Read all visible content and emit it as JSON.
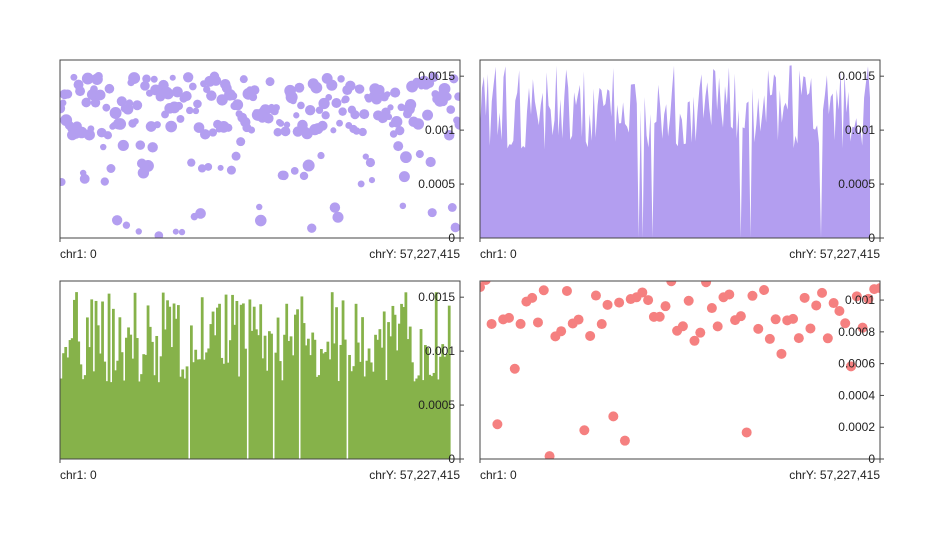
{
  "panels": [
    {
      "id": "scatter-purple",
      "type": "scatter",
      "color": "#b39ef0",
      "x_start_label": "chr1: 0",
      "x_end_label": "chrY: 57,227,415",
      "ylim": [
        0,
        0.00165
      ],
      "yticks": [
        {
          "value": 0,
          "label": "0"
        },
        {
          "value": 0.0005,
          "label": "0.0005"
        },
        {
          "value": 0.001,
          "label": "0.001"
        },
        {
          "value": 0.0015,
          "label": "0.0015"
        }
      ],
      "point_count": 260,
      "size_range": [
        3,
        6
      ]
    },
    {
      "id": "area-purple",
      "type": "area",
      "color": "#b39ef0",
      "x_start_label": "chr1: 0",
      "x_end_label": "chrY: 57,227,415",
      "ylim": [
        0,
        0.00165
      ],
      "yticks": [
        {
          "value": 0,
          "label": "0"
        },
        {
          "value": 0.0005,
          "label": "0.0005"
        },
        {
          "value": 0.001,
          "label": "0.001"
        },
        {
          "value": 0.0015,
          "label": "0.0015"
        }
      ],
      "point_count": 200
    },
    {
      "id": "bar-green",
      "type": "bar",
      "color": "#86b24a",
      "x_start_label": "chr1: 0",
      "x_end_label": "chrY: 57,227,415",
      "ylim": [
        0,
        0.00165
      ],
      "yticks": [
        {
          "value": 0,
          "label": "0"
        },
        {
          "value": 0.0005,
          "label": "0.0005"
        },
        {
          "value": 0.001,
          "label": "0.001"
        },
        {
          "value": 0.0015,
          "label": "0.0015"
        }
      ],
      "point_count": 180
    },
    {
      "id": "scatter-red",
      "type": "scatter",
      "color": "#f58080",
      "x_start_label": "chr1: 0",
      "x_end_label": "chrY: 57,227,415",
      "ylim": [
        0,
        0.00112
      ],
      "yticks": [
        {
          "value": 0,
          "label": "0"
        },
        {
          "value": 0.0002,
          "label": "0.0002"
        },
        {
          "value": 0.0004,
          "label": "0.0004"
        },
        {
          "value": 0.0006,
          "label": "0.0006"
        },
        {
          "value": 0.0008,
          "label": "0.0008"
        },
        {
          "value": 0.001,
          "label": "0.001"
        }
      ],
      "point_count": 70,
      "size_range": [
        5,
        5
      ]
    }
  ],
  "chart_data": [
    {
      "type": "scatter",
      "title": "",
      "xlabel": "",
      "ylabel": "",
      "x_range": [
        "chr1: 0",
        "chrY: 57,227,415"
      ],
      "ylim": [
        0,
        0.00165
      ],
      "note_series": "genome-wide points, values mostly 0.0009–0.0015"
    },
    {
      "type": "area",
      "title": "",
      "xlabel": "",
      "ylabel": "",
      "x_range": [
        "chr1: 0",
        "chrY: 57,227,415"
      ],
      "ylim": [
        0,
        0.00165
      ]
    },
    {
      "type": "bar",
      "title": "",
      "xlabel": "",
      "ylabel": "",
      "x_range": [
        "chr1: 0",
        "chrY: 57,227,415"
      ],
      "ylim": [
        0,
        0.00165
      ]
    },
    {
      "type": "scatter",
      "title": "",
      "xlabel": "",
      "ylabel": "",
      "x_range": [
        "chr1: 0",
        "chrY: 57,227,415"
      ],
      "ylim": [
        0,
        0.00112
      ]
    }
  ]
}
